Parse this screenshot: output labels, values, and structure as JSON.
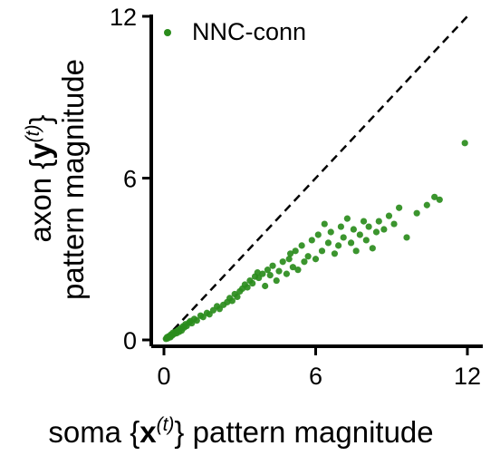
{
  "chart_data": {
    "type": "scatter",
    "title": "",
    "xlabel": {
      "prefix": "soma {",
      "var": "x",
      "sup": "(t)",
      "suffix": "} pattern magnitude"
    },
    "ylabel": {
      "line1_prefix": "axon {",
      "line1_var": "y",
      "line1_sup": "(t)",
      "line1_suffix": "}",
      "line2": "pattern magnitude"
    },
    "xlim": [
      0,
      12
    ],
    "ylim": [
      0,
      12
    ],
    "xticks": [
      "0",
      "6",
      "12"
    ],
    "yticks": [
      "0",
      "6",
      "12"
    ],
    "grid": false,
    "legend_position": "top-left",
    "reference_line": {
      "style": "dashed",
      "slope": 1,
      "color": "#000000"
    },
    "series": [
      {
        "name": "NNC-conn",
        "color": "#2a8c1c",
        "points": [
          [
            0.08,
            0.04
          ],
          [
            0.12,
            0.1
          ],
          [
            0.15,
            0.06
          ],
          [
            0.2,
            0.14
          ],
          [
            0.25,
            0.1
          ],
          [
            0.28,
            0.2
          ],
          [
            0.32,
            0.16
          ],
          [
            0.35,
            0.26
          ],
          [
            0.4,
            0.22
          ],
          [
            0.45,
            0.3
          ],
          [
            0.5,
            0.25
          ],
          [
            0.55,
            0.36
          ],
          [
            0.6,
            0.3
          ],
          [
            0.65,
            0.42
          ],
          [
            0.7,
            0.35
          ],
          [
            0.75,
            0.5
          ],
          [
            0.8,
            0.46
          ],
          [
            0.85,
            0.58
          ],
          [
            0.9,
            0.52
          ],
          [
            1.0,
            0.65
          ],
          [
            1.05,
            0.7
          ],
          [
            1.1,
            0.62
          ],
          [
            1.2,
            0.78
          ],
          [
            1.3,
            0.72
          ],
          [
            1.45,
            0.9
          ],
          [
            1.55,
            0.85
          ],
          [
            1.7,
            1.0
          ],
          [
            1.8,
            0.95
          ],
          [
            1.95,
            1.1
          ],
          [
            2.1,
            1.25
          ],
          [
            2.2,
            1.15
          ],
          [
            2.35,
            1.3
          ],
          [
            2.5,
            1.4
          ],
          [
            2.6,
            1.55
          ],
          [
            2.7,
            1.45
          ],
          [
            2.8,
            1.7
          ],
          [
            2.9,
            1.6
          ],
          [
            3.0,
            1.8
          ],
          [
            3.1,
            1.9
          ],
          [
            3.2,
            2.05
          ],
          [
            3.3,
            1.95
          ],
          [
            3.4,
            2.2
          ],
          [
            3.5,
            2.1
          ],
          [
            3.6,
            2.35
          ],
          [
            3.7,
            2.5
          ],
          [
            3.75,
            2.3
          ],
          [
            3.9,
            2.45
          ],
          [
            4.0,
            2.0
          ],
          [
            4.1,
            2.6
          ],
          [
            4.2,
            2.4
          ],
          [
            4.3,
            2.75
          ],
          [
            4.45,
            2.2
          ],
          [
            4.55,
            2.55
          ],
          [
            4.7,
            2.9
          ],
          [
            4.85,
            2.45
          ],
          [
            4.95,
            3.0
          ],
          [
            5.0,
            3.2
          ],
          [
            5.1,
            2.7
          ],
          [
            5.2,
            3.3
          ],
          [
            5.3,
            2.6
          ],
          [
            5.45,
            3.5
          ],
          [
            5.55,
            2.9
          ],
          [
            5.7,
            3.1
          ],
          [
            5.85,
            3.7
          ],
          [
            6.0,
            3.0
          ],
          [
            6.1,
            3.9
          ],
          [
            6.25,
            3.3
          ],
          [
            6.35,
            4.3
          ],
          [
            6.5,
            3.6
          ],
          [
            6.6,
            4.0
          ],
          [
            6.75,
            3.2
          ],
          [
            6.9,
            3.5
          ],
          [
            7.0,
            4.2
          ],
          [
            7.1,
            3.8
          ],
          [
            7.25,
            4.5
          ],
          [
            7.4,
            3.6
          ],
          [
            7.5,
            4.1
          ],
          [
            7.6,
            3.3
          ],
          [
            7.75,
            3.9
          ],
          [
            7.9,
            4.4
          ],
          [
            8.0,
            3.7
          ],
          [
            8.1,
            4.2
          ],
          [
            8.25,
            3.4
          ],
          [
            8.4,
            4.0
          ],
          [
            8.5,
            4.4
          ],
          [
            8.7,
            4.1
          ],
          [
            8.9,
            4.6
          ],
          [
            9.1,
            4.3
          ],
          [
            9.3,
            4.9
          ],
          [
            9.6,
            3.8
          ],
          [
            10.0,
            4.7
          ],
          [
            10.4,
            5.0
          ],
          [
            10.7,
            5.3
          ],
          [
            10.9,
            5.2
          ],
          [
            11.9,
            7.3
          ]
        ]
      }
    ]
  }
}
